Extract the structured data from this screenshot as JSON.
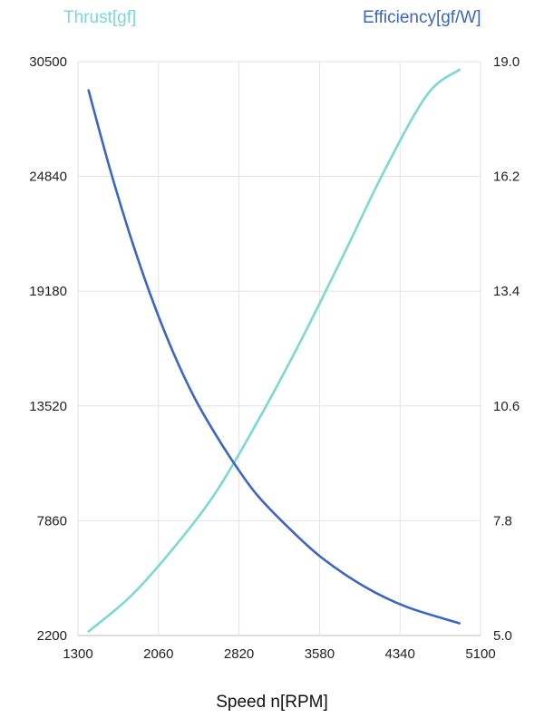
{
  "chart_data": {
    "type": "line",
    "xlabel": "Speed n[RPM]",
    "xlim": [
      1300,
      5100
    ],
    "xticks": [
      "1300",
      "2060",
      "2820",
      "3580",
      "4340",
      "5100"
    ],
    "y_left": {
      "label": "Thrust[gf]",
      "ylim": [
        2200,
        30500
      ],
      "ticks": [
        "30500",
        "24840",
        "19180",
        "13520",
        "7860",
        "2200"
      ],
      "color": "#7ad9d2"
    },
    "y_right": {
      "label": "Efficiency[gf/W]",
      "ylim": [
        5.0,
        19.0
      ],
      "ticks": [
        "19.0",
        "16.2",
        "13.4",
        "10.6",
        "7.8",
        "5.0"
      ],
      "color": "#3b66c4"
    },
    "grid": true,
    "series": [
      {
        "name": "Thrust[gf]",
        "axis": "left",
        "color": "#7ad9d2",
        "x": [
          1400,
          1800,
          2200,
          2600,
          3000,
          3400,
          3800,
          4200,
          4600,
          4900
        ],
        "y": [
          2400,
          4150,
          6500,
          9250,
          12800,
          16700,
          20900,
          25200,
          28900,
          30100
        ]
      },
      {
        "name": "Efficiency[gf/W]",
        "axis": "right",
        "color": "#3b66c4",
        "x": [
          1400,
          1600,
          1800,
          2000,
          2200,
          2400,
          2600,
          2800,
          3000,
          3300,
          3600,
          4000,
          4400,
          4900
        ],
        "y": [
          18.3,
          16.4,
          14.7,
          13.2,
          11.9,
          10.8,
          9.9,
          9.1,
          8.4,
          7.6,
          6.9,
          6.2,
          5.7,
          5.3
        ]
      }
    ]
  }
}
